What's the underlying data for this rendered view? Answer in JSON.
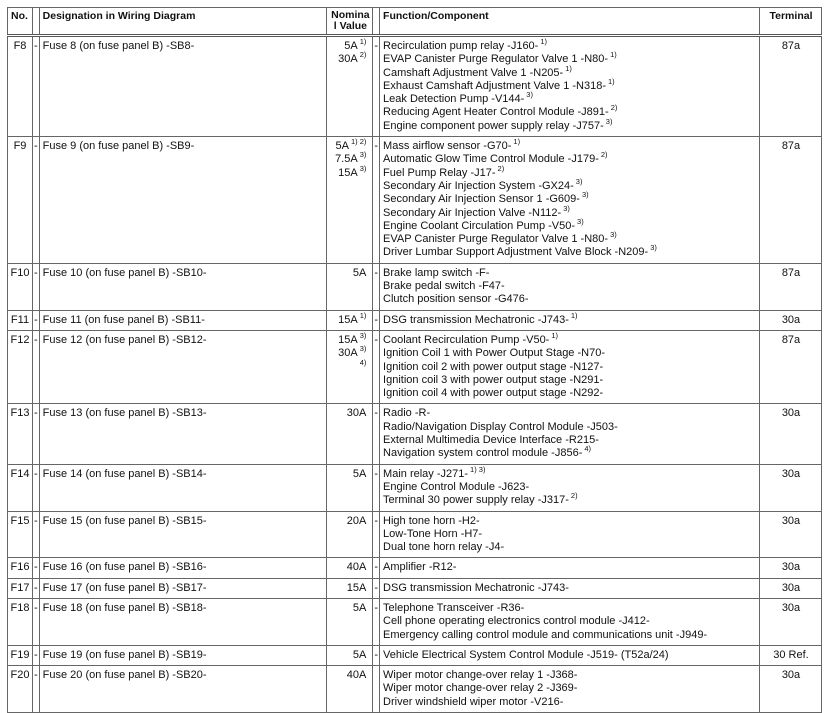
{
  "header": {
    "no": "No.",
    "designation": "Designation in Wiring Diagram",
    "nominal_line1": "Nomina",
    "nominal_line2": "l Value",
    "function": "Function/Component",
    "terminal": "Terminal"
  },
  "rows": [
    {
      "no": "F8",
      "dash": "-",
      "designation": "Fuse 8 (on fuse panel B) -SB8-",
      "nominal": [
        {
          "v": "5A",
          "sup": "1)"
        },
        {
          "v": "30A",
          "sup": "2)"
        }
      ],
      "fn_dash": "-",
      "functions": [
        {
          "t": "Recirculation pump relay -J160-",
          "sup": "1)"
        },
        {
          "t": "EVAP Canister Purge Regulator Valve 1 -N80-",
          "sup": "1)"
        },
        {
          "t": "Camshaft Adjustment Valve 1 -N205-",
          "sup": "1)"
        },
        {
          "t": "Exhaust Camshaft Adjustment Valve 1 -N318-",
          "sup": "1)"
        },
        {
          "t": "Leak Detection Pump -V144-",
          "sup": "3)"
        },
        {
          "t": "Reducing Agent Heater Control Module -J891-",
          "sup": "2)"
        },
        {
          "t": "Engine component power supply relay -J757-",
          "sup": "3)"
        }
      ],
      "terminal": "87a"
    },
    {
      "no": "F9",
      "dash": "-",
      "designation": "Fuse 9 (on fuse panel B) -SB9-",
      "nominal": [
        {
          "v": "5A",
          "sup": "1) 2)"
        },
        {
          "v": "7.5A",
          "sup": "3)"
        },
        {
          "v": "15A",
          "sup": "3)"
        }
      ],
      "fn_dash": "-",
      "functions": [
        {
          "t": "Mass airflow sensor -G70-",
          "sup": "1)"
        },
        {
          "t": "Automatic Glow Time Control Module -J179-",
          "sup": "2)"
        },
        {
          "t": "Fuel Pump Relay -J17-",
          "sup": "2)"
        },
        {
          "t": "Secondary Air Injection System -GX24-",
          "sup": "3)"
        },
        {
          "t": "Secondary Air Injection Sensor 1 -G609-",
          "sup": "3)"
        },
        {
          "t": "Secondary Air Injection Valve -N112-",
          "sup": "3)"
        },
        {
          "t": "Engine Coolant Circulation Pump -V50-",
          "sup": "3)"
        },
        {
          "t": "EVAP Canister Purge Regulator Valve 1 -N80-",
          "sup": "3)"
        },
        {
          "t": "Driver Lumbar Support Adjustment Valve Block -N209-",
          "sup": "3)"
        }
      ],
      "terminal": "87a"
    },
    {
      "no": "F10",
      "dash": "-",
      "designation": "Fuse 10 (on fuse panel B) -SB10-",
      "nominal": [
        {
          "v": "5A",
          "sup": ""
        }
      ],
      "fn_dash": "-",
      "functions": [
        {
          "t": "Brake lamp switch -F-",
          "sup": ""
        },
        {
          "t": "Brake pedal switch -F47-",
          "sup": ""
        },
        {
          "t": "Clutch position sensor -G476-",
          "sup": ""
        }
      ],
      "terminal": "87a"
    },
    {
      "no": "F11",
      "dash": "-",
      "designation": "Fuse 11 (on fuse panel B) -SB11-",
      "nominal": [
        {
          "v": "15A",
          "sup": "1)"
        }
      ],
      "fn_dash": "-",
      "functions": [
        {
          "t": "DSG transmission Mechatronic -J743-",
          "sup": "1)"
        }
      ],
      "terminal": "30a"
    },
    {
      "no": "F12",
      "dash": "-",
      "designation": "Fuse 12 (on fuse panel B) -SB12-",
      "nominal": [
        {
          "v": "15A",
          "sup": "3)"
        },
        {
          "v": "30A",
          "sup": "3)"
        },
        {
          "v": "",
          "sup": "4)"
        }
      ],
      "fn_dash": "-",
      "functions": [
        {
          "t": "Coolant Recirculation Pump -V50-",
          "sup": "1)"
        },
        {
          "t": "Ignition Coil 1 with Power Output Stage -N70-",
          "sup": ""
        },
        {
          "t": "Ignition coil 2 with power output stage -N127-",
          "sup": ""
        },
        {
          "t": "Ignition coil 3 with power output stage -N291-",
          "sup": ""
        },
        {
          "t": "Ignition coil 4 with power output stage -N292-",
          "sup": ""
        }
      ],
      "terminal": "87a"
    },
    {
      "no": "F13",
      "dash": "-",
      "designation": "Fuse 13 (on fuse panel B) -SB13-",
      "nominal": [
        {
          "v": "30A",
          "sup": ""
        }
      ],
      "fn_dash": "-",
      "functions": [
        {
          "t": "Radio -R-",
          "sup": ""
        },
        {
          "t": "Radio/Navigation Display Control Module -J503-",
          "sup": ""
        },
        {
          "t": "External Multimedia Device Interface -R215-",
          "sup": ""
        },
        {
          "t": "Navigation system control module -J856-",
          "sup": "4)"
        }
      ],
      "terminal": "30a"
    },
    {
      "no": "F14",
      "dash": "-",
      "designation": "Fuse 14 (on fuse panel B) -SB14-",
      "nominal": [
        {
          "v": "5A",
          "sup": ""
        }
      ],
      "fn_dash": "-",
      "functions": [
        {
          "t": "Main relay -J271-",
          "sup": "1) 3)"
        },
        {
          "t": "Engine Control Module -J623-",
          "sup": ""
        },
        {
          "t": "Terminal 30 power supply relay -J317-",
          "sup": "2)"
        }
      ],
      "terminal": "30a"
    },
    {
      "no": "F15",
      "dash": "-",
      "designation": "Fuse 15 (on fuse panel B) -SB15-",
      "nominal": [
        {
          "v": "20A",
          "sup": ""
        }
      ],
      "fn_dash": "-",
      "functions": [
        {
          "t": "High tone horn -H2-",
          "sup": ""
        },
        {
          "t": "Low-Tone Horn -H7-",
          "sup": ""
        },
        {
          "t": "Dual tone horn relay -J4-",
          "sup": ""
        }
      ],
      "terminal": "30a"
    },
    {
      "no": "F16",
      "dash": "-",
      "designation": "Fuse 16 (on fuse panel B) -SB16-",
      "nominal": [
        {
          "v": "40A",
          "sup": ""
        }
      ],
      "fn_dash": "-",
      "functions": [
        {
          "t": "Amplifier -R12-",
          "sup": ""
        }
      ],
      "terminal": "30a"
    },
    {
      "no": "F17",
      "dash": "-",
      "designation": "Fuse 17 (on fuse panel B) -SB17-",
      "nominal": [
        {
          "v": "15A",
          "sup": ""
        }
      ],
      "fn_dash": "-",
      "functions": [
        {
          "t": "DSG transmission Mechatronic -J743-",
          "sup": ""
        }
      ],
      "terminal": "30a"
    },
    {
      "no": "F18",
      "dash": "-",
      "designation": "Fuse 18 (on fuse panel B) -SB18-",
      "nominal": [
        {
          "v": "5A",
          "sup": ""
        }
      ],
      "fn_dash": "-",
      "functions": [
        {
          "t": "Telephone Transceiver -R36-",
          "sup": ""
        },
        {
          "t": "Cell phone operating electronics control module -J412-",
          "sup": ""
        },
        {
          "t": "Emergency calling control module and communications unit -J949-",
          "sup": ""
        }
      ],
      "terminal": "30a"
    },
    {
      "no": "F19",
      "dash": "-",
      "designation": "Fuse 19 (on fuse panel B) -SB19-",
      "nominal": [
        {
          "v": "5A",
          "sup": ""
        }
      ],
      "fn_dash": "-",
      "functions": [
        {
          "t": "Vehicle Electrical System Control Module -J519- (T52a/24)",
          "sup": ""
        }
      ],
      "terminal": "30 Ref."
    },
    {
      "no": "F20",
      "dash": "-",
      "designation": "Fuse 20 (on fuse panel B) -SB20-",
      "nominal": [
        {
          "v": "40A",
          "sup": ""
        }
      ],
      "fn_dash": "",
      "functions": [
        {
          "t": "Wiper motor change-over relay 1 -J368-",
          "sup": ""
        },
        {
          "t": "Wiper motor change-over relay 2 -J369-",
          "sup": ""
        },
        {
          "t": "Driver windshield wiper motor -V216-",
          "sup": ""
        }
      ],
      "terminal": "30a"
    }
  ]
}
